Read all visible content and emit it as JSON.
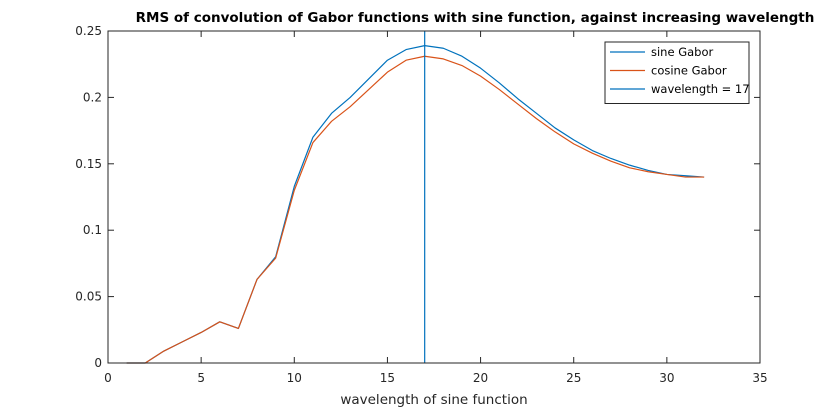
{
  "chart_data": {
    "type": "line",
    "title": "RMS of convolution of Gabor functions with sine function, against increasing wavelength",
    "xlabel": "wavelength of sine function",
    "ylabel": "",
    "xlim": [
      0,
      35
    ],
    "ylim": [
      0,
      0.25
    ],
    "xticks": [
      0,
      5,
      10,
      15,
      20,
      25,
      30,
      35
    ],
    "yticks": [
      0,
      0.05,
      0.1,
      0.15,
      0.2,
      0.25
    ],
    "xtick_labels": [
      "0",
      "5",
      "10",
      "15",
      "20",
      "25",
      "30",
      "35"
    ],
    "ytick_labels": [
      "0",
      "0.05",
      "0.1",
      "0.15",
      "0.2",
      "0.25"
    ],
    "grid": false,
    "legend_position": "top-right",
    "series": [
      {
        "name": "sine Gabor",
        "color": "#0072BD",
        "x": [
          1,
          2,
          3,
          4,
          5,
          6,
          7,
          8,
          9,
          10,
          11,
          12,
          13,
          14,
          15,
          16,
          17,
          18,
          19,
          20,
          21,
          22,
          23,
          24,
          25,
          26,
          27,
          28,
          29,
          30,
          31,
          32
        ],
        "y": [
          0,
          0,
          0.009,
          0.016,
          0.023,
          0.031,
          0.026,
          0.063,
          0.08,
          0.133,
          0.17,
          0.188,
          0.2,
          0.214,
          0.228,
          0.236,
          0.239,
          0.237,
          0.231,
          0.222,
          0.211,
          0.199,
          0.188,
          0.177,
          0.168,
          0.16,
          0.154,
          0.149,
          0.145,
          0.142,
          0.141,
          0.14
        ]
      },
      {
        "name": "cosine Gabor",
        "color": "#D95319",
        "x": [
          1,
          2,
          3,
          4,
          5,
          6,
          7,
          8,
          9,
          10,
          11,
          12,
          13,
          14,
          15,
          16,
          17,
          18,
          19,
          20,
          21,
          22,
          23,
          24,
          25,
          26,
          27,
          28,
          29,
          30,
          31,
          32
        ],
        "y": [
          0,
          0,
          0.009,
          0.016,
          0.023,
          0.031,
          0.026,
          0.063,
          0.079,
          0.13,
          0.166,
          0.182,
          0.193,
          0.206,
          0.219,
          0.228,
          0.231,
          0.229,
          0.224,
          0.216,
          0.206,
          0.195,
          0.184,
          0.174,
          0.165,
          0.158,
          0.152,
          0.147,
          0.144,
          0.142,
          0.14,
          0.14
        ]
      },
      {
        "name": "wavelength = 17",
        "color": "#0072BD",
        "x": [
          17,
          17
        ],
        "y": [
          0,
          0.25
        ]
      }
    ]
  }
}
